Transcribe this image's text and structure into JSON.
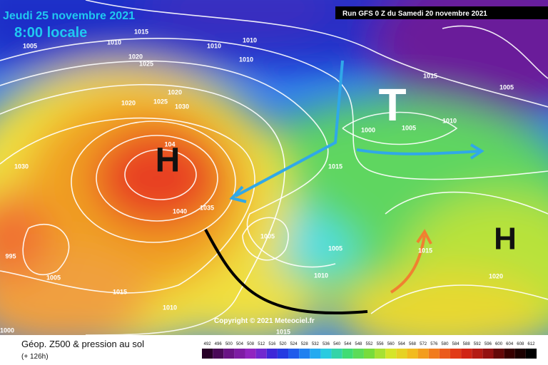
{
  "header": {
    "date": "Jeudi 25 novembre 2021",
    "time": "8:00 locale",
    "run": "Run GFS 0 Z du Samedi 20 novembre 2021"
  },
  "map": {
    "highs": [
      "H",
      "H"
    ],
    "lows": [
      "T"
    ],
    "isobar_labels": [
      "1015",
      "1010",
      "1005",
      "1010",
      "1010",
      "1010",
      "1020",
      "1025",
      "1020",
      "1020",
      "1025",
      "1030",
      "1030",
      "104",
      "1040",
      "1035",
      "1015",
      "1005",
      "1005",
      "1010",
      "1015",
      "1010",
      "1005",
      "1000",
      "1015",
      "1015",
      "1020",
      "1005",
      "1015",
      "1010",
      "1005",
      "1000",
      "995"
    ],
    "copyright": "Copyright © 2021 Meteociel.fr"
  },
  "footer": {
    "title": "Géop. Z500 & pression au sol",
    "lead": "(+ 126h)",
    "scale": [
      492,
      496,
      500,
      504,
      508,
      512,
      516,
      520,
      524,
      528,
      532,
      536,
      540,
      544,
      548,
      552,
      556,
      560,
      564,
      568,
      572,
      576,
      580,
      584,
      588,
      592,
      596,
      600,
      604,
      608,
      612
    ]
  }
}
